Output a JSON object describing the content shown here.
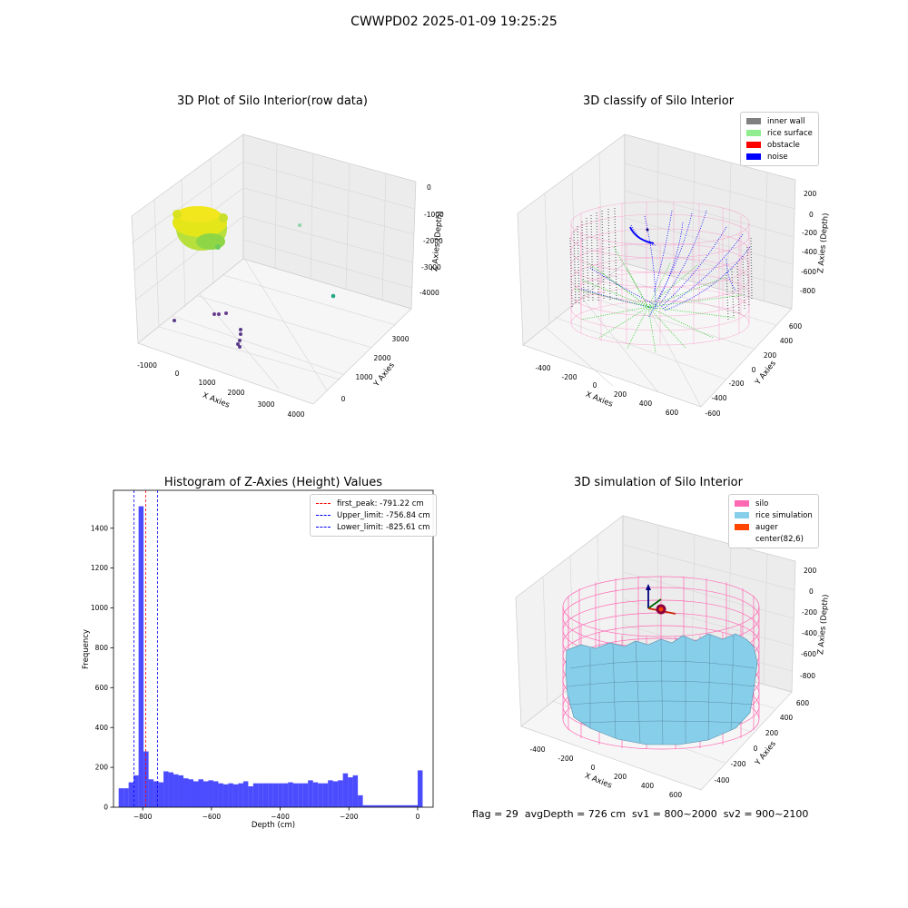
{
  "figure": {
    "title": "CWWPD02 2025-01-09 19:25:25"
  },
  "panels": {
    "raw": {
      "title": "3D Plot of Silo Interior(row data)",
      "x_label": "X Axies",
      "y_label": "Y Axies",
      "z_label": "Z Axies (Depth)",
      "x_ticks": [
        "-1000",
        "0",
        "1000",
        "2000",
        "3000",
        "4000"
      ],
      "y_ticks": [
        "0",
        "1000",
        "2000",
        "3000"
      ],
      "z_ticks": [
        "0",
        "-1000",
        "-2000",
        "-3000",
        "-4000"
      ]
    },
    "classify": {
      "title": "3D classify of Silo Interior",
      "x_label": "X Axies",
      "y_label": "Y Axies",
      "z_label": "Z Axies (Depth)",
      "x_ticks": [
        "-400",
        "-200",
        "0",
        "200",
        "400",
        "600"
      ],
      "y_ticks": [
        "600",
        "400",
        "200",
        "0",
        "-200",
        "-400",
        "-600"
      ],
      "z_ticks": [
        "200",
        "0",
        "-200",
        "-400",
        "-600",
        "-800"
      ],
      "legend": [
        {
          "label": "inner wall",
          "color": "#808080"
        },
        {
          "label": "rice surface",
          "color": "#90ee90"
        },
        {
          "label": "obstacle",
          "color": "#ff0000"
        },
        {
          "label": "noise",
          "color": "#0000ff"
        }
      ]
    },
    "histogram": {
      "title": "Histogram of Z-Axies (Height) Values",
      "x_label": "Depth (cm)",
      "y_label": "Frequency",
      "x_ticks": [
        "−800",
        "−600",
        "−400",
        "−200",
        "0"
      ],
      "y_ticks": [
        "0",
        "200",
        "400",
        "600",
        "800",
        "1000",
        "1200",
        "1400"
      ],
      "legend": [
        {
          "label": "first_peak: -791.22 cm",
          "color": "#ff0000"
        },
        {
          "label": "Upper_limit: -756.84 cm",
          "color": "#0000ff"
        },
        {
          "label": "Lower_limit: -825.61 cm",
          "color": "#0000ff"
        }
      ]
    },
    "simulation": {
      "title": "3D simulation of Silo Interior",
      "x_label": "X Axies",
      "y_label": "Y Axies",
      "z_label": "Z Axies (Depth)",
      "x_ticks": [
        "-400",
        "-200",
        "0",
        "200",
        "400",
        "600"
      ],
      "y_ticks": [
        "600",
        "400",
        "200",
        "0",
        "-200",
        "-400"
      ],
      "z_ticks": [
        "200",
        "0",
        "-200",
        "-400",
        "-600",
        "-800"
      ],
      "legend": [
        {
          "label": "silo",
          "color": "#ff69b4"
        },
        {
          "label": "rice simulation",
          "color": "#87ceeb"
        },
        {
          "label": "auger",
          "color": "#ff4500"
        },
        {
          "label": "center(82,6)",
          "color": "#ffffff"
        }
      ]
    }
  },
  "footer": {
    "text": "flag = 29  avgDepth = 726 cm  sv1 = 800~2000  sv2 = 900~2100"
  },
  "chart_data": {
    "type": "bar",
    "title": "Histogram of Z-Axies (Height) Values",
    "xlabel": "Depth (cm)",
    "ylabel": "Frequency",
    "xlim": [
      -885,
      45
    ],
    "ylim": [
      0,
      1590
    ],
    "bin_width": 14.5,
    "bin_starts": [
      -870,
      -855.5,
      -841,
      -826.5,
      -812,
      -797.5,
      -783,
      -768.5,
      -754,
      -739.5,
      -725,
      -710.5,
      -696,
      -681.5,
      -667,
      -652.5,
      -638,
      -623.5,
      -609,
      -594.5,
      -580,
      -565.5,
      -551,
      -536.5,
      -522,
      -507.5,
      -493,
      -478.5,
      -464,
      -449.5,
      -435,
      -420.5,
      -406,
      -391.5,
      -377,
      -362.5,
      -348,
      -333.5,
      -319,
      -304.5,
      -290,
      -275.5,
      -261,
      -246.5,
      -232,
      -217.5,
      -203,
      -188.5,
      -174,
      -159.5,
      -145,
      -130.5,
      -116,
      -101.5,
      -87,
      -72.5,
      -58,
      -43.5,
      -29,
      -14.5,
      0
    ],
    "values": [
      95,
      95,
      125,
      160,
      1510,
      280,
      140,
      130,
      125,
      180,
      175,
      165,
      160,
      145,
      140,
      130,
      140,
      130,
      135,
      130,
      120,
      115,
      120,
      115,
      120,
      130,
      105,
      120,
      120,
      120,
      120,
      120,
      120,
      120,
      125,
      120,
      120,
      120,
      135,
      125,
      120,
      120,
      135,
      130,
      135,
      170,
      150,
      160,
      60,
      10,
      10,
      10,
      10,
      10,
      10,
      10,
      10,
      10,
      10,
      10,
      185
    ],
    "first_peak": -791.22,
    "upper_limit": -756.84,
    "lower_limit": -825.61,
    "bar_color": "#0000ff",
    "legend_position": "top-right"
  }
}
